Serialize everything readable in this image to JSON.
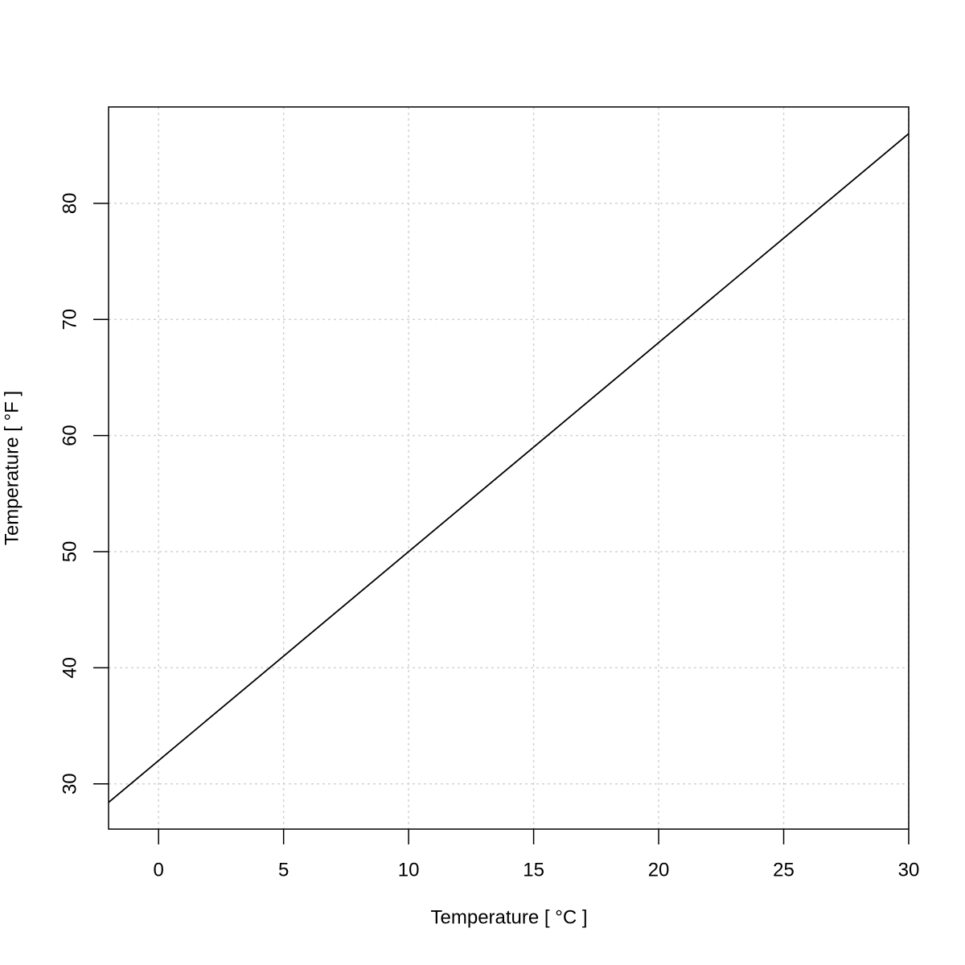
{
  "chart_data": {
    "type": "line",
    "x_label": "Temperature [ °C ]",
    "y_label": "Temperature [ °F ]",
    "x": [
      -2,
      0,
      5,
      10,
      15,
      20,
      25,
      30
    ],
    "series": [
      {
        "name": null,
        "color": "#000000",
        "values": [
          28.4,
          32,
          41,
          50,
          59,
          68,
          77,
          86
        ]
      }
    ],
    "xlim": [
      -2,
      30
    ],
    "xticks": [
      0,
      5,
      10,
      15,
      20,
      25,
      30
    ],
    "ylim": [
      26.1,
      88.3
    ],
    "yticks": [
      30,
      40,
      50,
      60,
      70,
      80
    ],
    "grid": true
  }
}
